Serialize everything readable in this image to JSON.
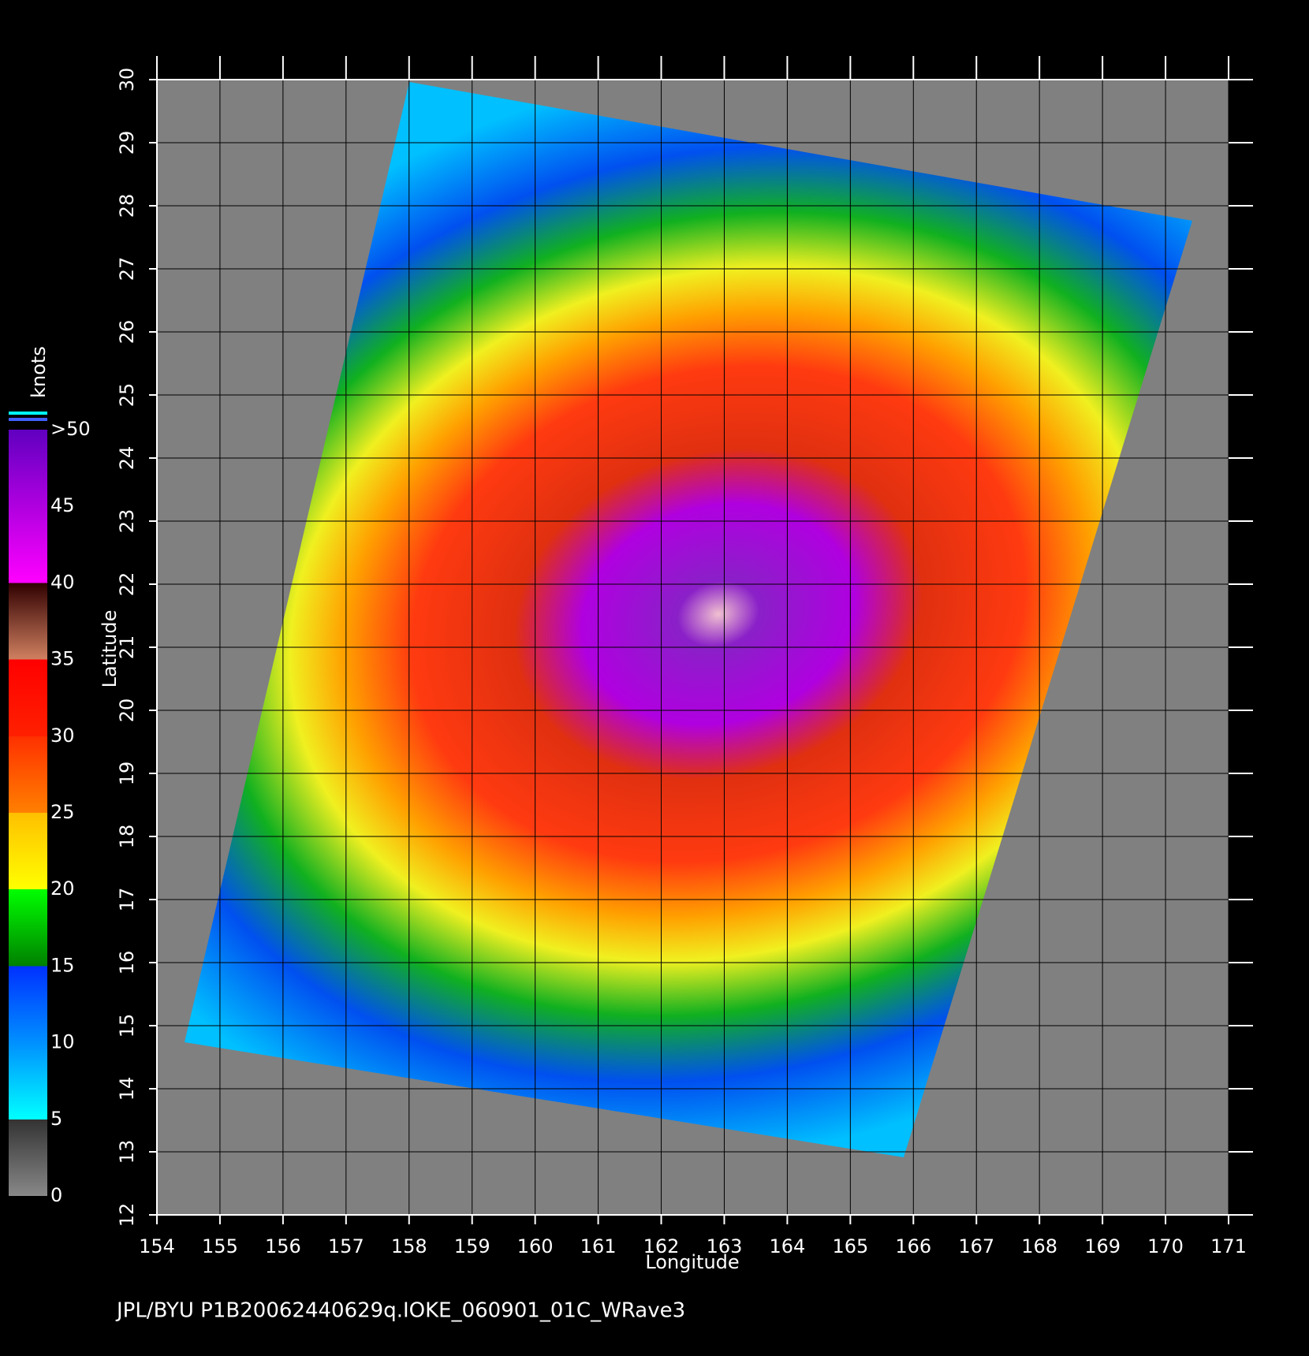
{
  "map": {
    "footer": "JPL/BYU  P1B20062440629q.IOKE_060901_01C_WRave3",
    "x_axis": {
      "label": "Longitude",
      "lim": [
        154,
        171
      ],
      "ticks": [
        154,
        155,
        156,
        157,
        158,
        159,
        160,
        161,
        162,
        163,
        164,
        165,
        166,
        167,
        168,
        169,
        170,
        171
      ]
    },
    "y_axis": {
      "label": "Latitude",
      "lim": [
        12,
        30
      ],
      "ticks": [
        12,
        13,
        14,
        15,
        16,
        17,
        18,
        19,
        20,
        21,
        22,
        23,
        24,
        25,
        26,
        27,
        28,
        29,
        30
      ]
    },
    "colorbar": {
      "unit": "knots",
      "lim": [
        0,
        50
      ],
      "ticks": [
        0,
        5,
        10,
        15,
        20,
        25,
        30,
        35,
        40,
        45,
        {
          "value": 50,
          "label": ">50"
        }
      ]
    }
  }
}
